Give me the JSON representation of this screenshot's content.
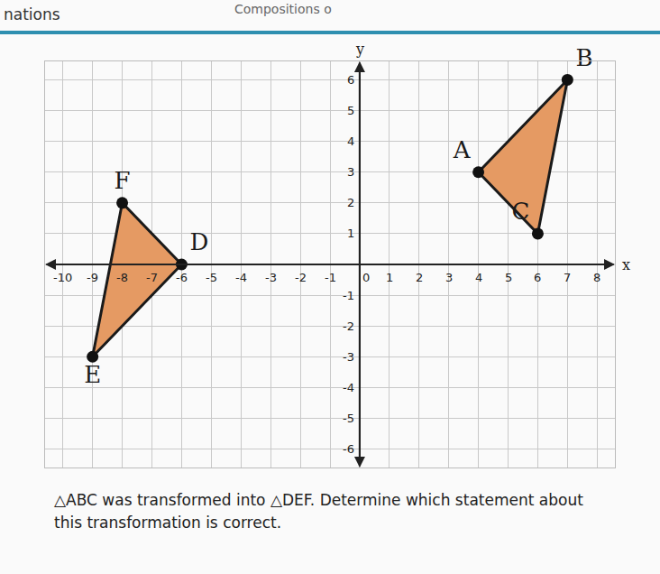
{
  "chart_data": {
    "type": "polygon",
    "header": [
      "nations",
      "Compositions o"
    ],
    "xlabel": "x",
    "ylabel": "y",
    "series": [
      {
        "labels": [
          "A",
          "B",
          "C"
        ],
        "x": [
          4,
          7,
          6
        ],
        "y": [
          3,
          6,
          1
        ],
        "color": "#e59a63"
      },
      {
        "labels": [
          "D",
          "E",
          "F"
        ],
        "x": [
          -6,
          -9,
          -8
        ],
        "y": [
          0,
          -3,
          2
        ],
        "color": "#e59a63"
      }
    ],
    "xlim": [
      -10.6,
      8.6
    ],
    "ylim": [
      -6.6,
      6.6
    ],
    "xticks": [
      -10,
      -9,
      -8,
      -7,
      -6,
      -5,
      -4,
      -3,
      -2,
      -1,
      0,
      1,
      2,
      3,
      4,
      5,
      6,
      7,
      8
    ],
    "yticks": [
      -6,
      -5,
      -4,
      -3,
      -2,
      -1,
      1,
      2,
      3,
      4,
      5,
      6
    ],
    "grid": true,
    "question": "△ABC was transformed into △DEF. Determine which statement about this transformation is correct."
  }
}
